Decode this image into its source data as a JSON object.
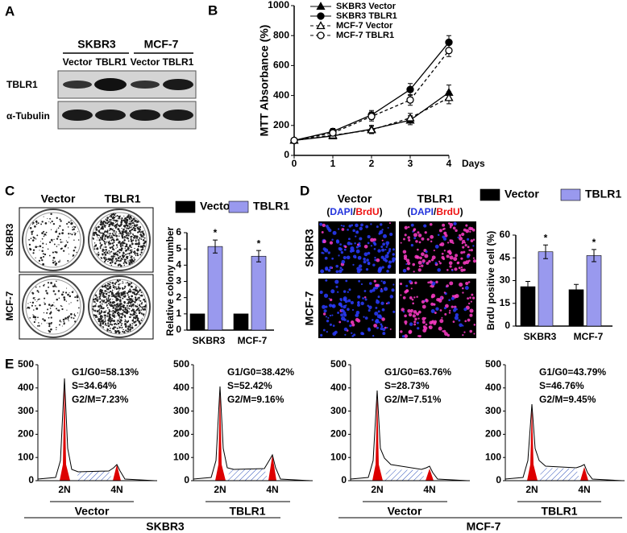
{
  "panel_labels": [
    "A",
    "B",
    "C",
    "D",
    "E"
  ],
  "blot": {
    "cell_lines": [
      "SKBR3",
      "MCF-7"
    ],
    "conditions": [
      "Vector",
      "TBLR1",
      "Vector",
      "TBLR1"
    ],
    "rows": [
      "TBLR1",
      "α-Tubulin"
    ]
  },
  "colony_images": {
    "columns": [
      "Vector",
      "TBLR1"
    ],
    "rows": [
      "SKBR3",
      "MCF-7"
    ]
  },
  "brdu_images": {
    "columns": [
      "Vector",
      "TBLR1"
    ],
    "stain_label": [
      "(",
      "DAPI",
      "/",
      "BrdU",
      ")"
    ],
    "rows": [
      "SKBR3",
      "MCF-7"
    ]
  },
  "cell_cycle_groups": [
    "Vector",
    "TBLR1",
    "Vector",
    "TBLR1"
  ],
  "cell_lines": [
    "SKBR3",
    "MCF-7"
  ],
  "chart_data": [
    {
      "type": "line",
      "x_label": "Days",
      "y_label": "MTT Absorbance (%)",
      "x": [
        0,
        1,
        2,
        3,
        4
      ],
      "xlim": [
        0,
        4
      ],
      "xticks": [
        0,
        1,
        2,
        3,
        4
      ],
      "ylim": [
        0,
        1000
      ],
      "yticks": [
        0,
        200,
        400,
        600,
        800,
        1000
      ],
      "legend": "upper left",
      "series": [
        {
          "name": "SKBR3 Vector",
          "color": "#000000",
          "marker": "triangle",
          "marker_fill": "#000000",
          "dash": false,
          "values": [
            100,
            130,
            175,
            235,
            420
          ],
          "errors": [
            10,
            15,
            25,
            30,
            50
          ]
        },
        {
          "name": "SKBR3 TBLR1",
          "color": "#000000",
          "marker": "circle",
          "marker_fill": "#000000",
          "dash": false,
          "values": [
            100,
            160,
            270,
            440,
            755
          ],
          "errors": [
            10,
            20,
            30,
            40,
            45
          ]
        },
        {
          "name": "MCF-7  Vector",
          "color": "#000000",
          "marker": "triangle",
          "marker_fill": "#ffffff",
          "dash": true,
          "values": [
            100,
            135,
            170,
            250,
            385
          ],
          "errors": [
            10,
            15,
            25,
            30,
            40
          ]
        },
        {
          "name": "MCF-7  TBLR1",
          "color": "#000000",
          "marker": "circle",
          "marker_fill": "#ffffff",
          "dash": true,
          "values": [
            100,
            150,
            260,
            370,
            700
          ],
          "errors": [
            10,
            20,
            30,
            35,
            40
          ]
        }
      ]
    },
    {
      "type": "bar",
      "y_label": "Relative colony number",
      "categories": [
        "SKBR3",
        "MCF-7"
      ],
      "ylim": [
        0,
        6
      ],
      "yticks": [
        0,
        1,
        2,
        3,
        4,
        5,
        6
      ],
      "series": [
        {
          "name": "Vector",
          "color": "#000000",
          "values": [
            1,
            1
          ]
        },
        {
          "name": "TBLR1",
          "color": "#9999ee",
          "values": [
            5.15,
            4.55
          ],
          "errors": [
            0.4,
            0.35
          ],
          "annotations": [
            "*",
            "*"
          ]
        }
      ]
    },
    {
      "type": "bar",
      "y_label": "BrdU positive cell (%)",
      "categories": [
        "SKBR3",
        "MCF-7"
      ],
      "ylim": [
        0,
        60
      ],
      "yticks": [
        0,
        15,
        30,
        45,
        60
      ],
      "series": [
        {
          "name": "Vector",
          "color": "#000000",
          "values": [
            26,
            24
          ],
          "errors": [
            3.5,
            3.5
          ]
        },
        {
          "name": "TBLR1",
          "color": "#9999ee",
          "values": [
            49,
            46.5
          ],
          "errors": [
            4.5,
            4
          ],
          "annotations": [
            "*",
            "*"
          ]
        }
      ]
    },
    {
      "type": "cell-cycle",
      "ylim": [
        0,
        500
      ],
      "yticks": [
        0,
        100,
        200,
        300,
        400,
        500
      ],
      "categories": [
        "2N",
        "4N"
      ],
      "annotations": [
        "G1/G0=58.13%",
        "S=34.64%",
        "G2/M=7.23%"
      ]
    },
    {
      "type": "cell-cycle",
      "ylim": [
        0,
        500
      ],
      "yticks": [
        0,
        100,
        200,
        300,
        400,
        500
      ],
      "categories": [
        "2N",
        "4N"
      ],
      "annotations": [
        "G1/G0=38.42%",
        "S=52.42%",
        "G2/M=9.16%"
      ]
    },
    {
      "type": "cell-cycle",
      "ylim": [
        0,
        500
      ],
      "yticks": [
        0,
        100,
        200,
        300,
        400,
        500
      ],
      "categories": [
        "2N",
        "4N"
      ],
      "annotations": [
        "G1/G0=63.76%",
        "S=28.73%",
        "G2/M=7.51%"
      ]
    },
    {
      "type": "cell-cycle",
      "ylim": [
        0,
        500
      ],
      "yticks": [
        0,
        100,
        200,
        300,
        400,
        500
      ],
      "categories": [
        "2N",
        "4N"
      ],
      "annotations": [
        "G1/G0=43.79%",
        "S=46.76%",
        "G2/M=9.45%"
      ]
    }
  ]
}
